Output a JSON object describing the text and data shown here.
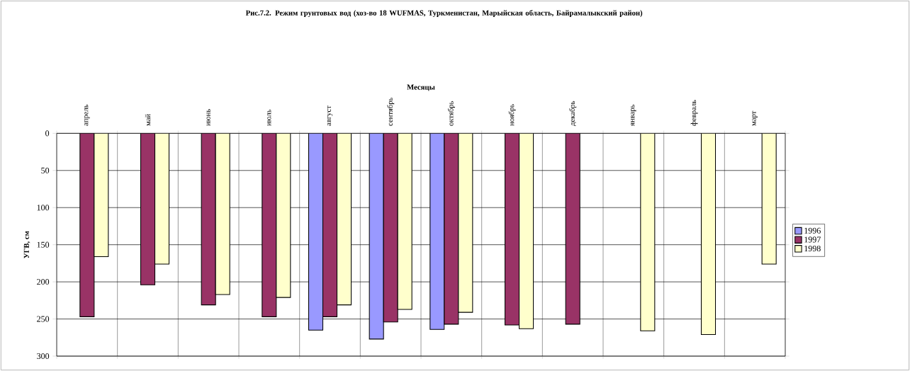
{
  "chart_data": {
    "type": "bar",
    "title": "Рис.7.2.        Режим грунтовых вод (хоз-во 18 WUFMAS, Туркменистан, Марыйская область, Байрамалыкский район)",
    "xlabel": "Месяцы",
    "ylabel": "УГВ, см",
    "categories": [
      "апрель",
      "май",
      "июнь",
      "июль",
      "август",
      "сентябрь",
      "октябрь",
      "ноябрь",
      "декабрь",
      "январь",
      "февраль",
      "март"
    ],
    "series": [
      {
        "name": "1996",
        "color": "#9999ff",
        "values": [
          null,
          null,
          null,
          null,
          265,
          277,
          264,
          null,
          null,
          null,
          null,
          null
        ]
      },
      {
        "name": "1997",
        "color": "#993366",
        "values": [
          247,
          204,
          231,
          247,
          247,
          254,
          257,
          258,
          257,
          null,
          null,
          null
        ]
      },
      {
        "name": "1998",
        "color": "#ffffcc",
        "values": [
          166,
          176,
          217,
          221,
          231,
          237,
          241,
          263,
          null,
          266,
          271,
          176
        ]
      }
    ],
    "ylim": [
      300,
      0
    ],
    "yticks": [
      0,
      50,
      100,
      150,
      200,
      250,
      300
    ],
    "grid": true,
    "legend": "right"
  }
}
